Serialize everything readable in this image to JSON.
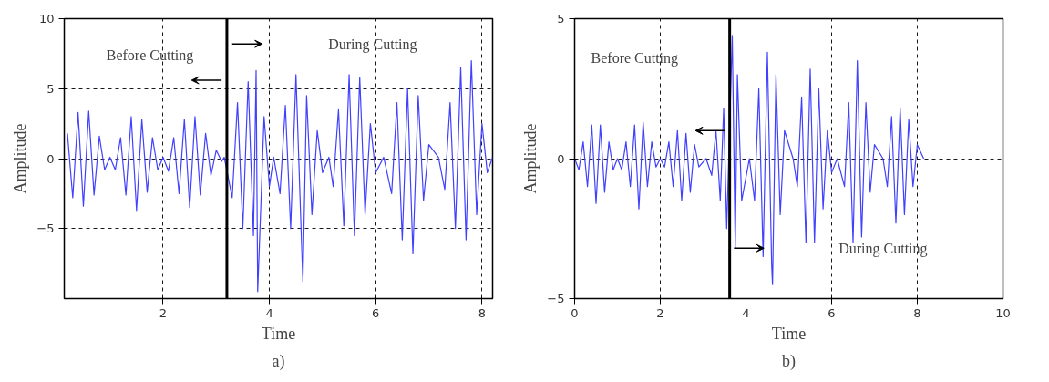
{
  "chart_data": [
    {
      "type": "line",
      "title": "a)",
      "xlabel": "Time",
      "ylabel": "Amplitude",
      "xlim": [
        0.14,
        8.2
      ],
      "ylim": [
        -10,
        10
      ],
      "xticks": [
        2,
        4,
        6,
        8
      ],
      "yticks": [
        -5,
        0,
        5,
        10
      ],
      "grid": true,
      "line_style": "solid",
      "ref_lines": [
        {
          "axis": "x",
          "value": 3.2,
          "color": "#000000"
        }
      ],
      "annotations": [
        "Before Cutting",
        "During Cutting"
      ],
      "series": [
        {
          "color": "#4040ff",
          "x": [
            0.2,
            0.3,
            0.4,
            0.5,
            0.6,
            0.7,
            0.8,
            0.9,
            1.0,
            1.1,
            1.2,
            1.3,
            1.4,
            1.5,
            1.6,
            1.7,
            1.8,
            1.9,
            2.0,
            2.1,
            2.2,
            2.3,
            2.4,
            2.5,
            2.6,
            2.7,
            2.8,
            2.9,
            3.0,
            3.1,
            3.15,
            3.3,
            3.4,
            3.5,
            3.6,
            3.7,
            3.75,
            3.78,
            3.9,
            4.0,
            4.08,
            4.2,
            4.3,
            4.4,
            4.5,
            4.6,
            4.63,
            4.7,
            4.8,
            4.9,
            5.0,
            5.12,
            5.2,
            5.3,
            5.4,
            5.5,
            5.6,
            5.7,
            5.8,
            5.9,
            6.0,
            6.15,
            6.3,
            6.4,
            6.5,
            6.6,
            6.7,
            6.8,
            6.9,
            7.0,
            7.18,
            7.3,
            7.4,
            7.5,
            7.6,
            7.7,
            7.8,
            7.9,
            8.0,
            8.1,
            8.2
          ],
          "values": [
            1.8,
            -2.8,
            3.3,
            -3.4,
            3.4,
            -2.6,
            1.6,
            -0.8,
            0.1,
            -0.8,
            1.5,
            -2.6,
            3.0,
            -3.7,
            2.8,
            -2.4,
            1.5,
            -0.8,
            0.1,
            -0.9,
            1.5,
            -2.5,
            2.8,
            -3.5,
            3.0,
            -2.6,
            1.8,
            -1.2,
            0.6,
            -0.2,
            0.1,
            -2.8,
            4.0,
            -5.0,
            5.5,
            -5.5,
            6.3,
            -9.5,
            3.0,
            -2.0,
            0.1,
            -2.5,
            3.8,
            -5.0,
            6.0,
            -5.5,
            -8.8,
            4.5,
            -4.0,
            2.0,
            -1.0,
            0.1,
            -2.0,
            3.5,
            -4.8,
            6.0,
            -5.5,
            5.8,
            -4.0,
            2.5,
            -1.0,
            0.1,
            -2.5,
            4.0,
            -5.8,
            5.0,
            -6.8,
            4.5,
            -3.0,
            1.0,
            0.1,
            -2.2,
            4.0,
            -5.0,
            6.5,
            -5.8,
            7.0,
            -4.0,
            2.5,
            -1.0,
            0.1
          ]
        }
      ]
    },
    {
      "type": "line",
      "title": "b)",
      "xlabel": "Time",
      "ylabel": "Amplitude",
      "xlim": [
        0,
        10
      ],
      "ylim": [
        -5,
        5
      ],
      "xticks": [
        0,
        2,
        4,
        6,
        8,
        10
      ],
      "yticks": [
        -5,
        0,
        5
      ],
      "grid": true,
      "line_style": "solid",
      "ref_lines": [
        {
          "axis": "x",
          "value": 3.62,
          "color": "#000000"
        }
      ],
      "annotations": [
        "Before Cutting",
        "During Cutting"
      ],
      "series": [
        {
          "color": "#4040ff",
          "x": [
            0,
            0.1,
            0.2,
            0.3,
            0.4,
            0.5,
            0.6,
            0.7,
            0.8,
            0.9,
            1.0,
            1.1,
            1.2,
            1.3,
            1.4,
            1.5,
            1.6,
            1.7,
            1.8,
            1.9,
            2.0,
            2.1,
            2.2,
            2.3,
            2.4,
            2.5,
            2.6,
            2.7,
            2.8,
            2.9,
            3.07,
            3.2,
            3.3,
            3.4,
            3.48,
            3.55,
            3.68,
            3.75,
            3.8,
            3.9,
            4.08,
            4.2,
            4.3,
            4.4,
            4.5,
            4.6,
            4.62,
            4.7,
            4.8,
            4.9,
            5.1,
            5.2,
            5.3,
            5.4,
            5.5,
            5.6,
            5.7,
            5.8,
            5.9,
            6.0,
            6.13,
            6.3,
            6.4,
            6.5,
            6.6,
            6.7,
            6.8,
            6.9,
            7.0,
            7.2,
            7.3,
            7.4,
            7.5,
            7.6,
            7.7,
            7.8,
            7.9,
            8.0,
            8.15
          ],
          "values": [
            0,
            -0.4,
            0.6,
            -1.0,
            1.2,
            -1.6,
            1.2,
            -1.2,
            0.6,
            -0.4,
            0,
            -0.4,
            0.6,
            -1.0,
            1.2,
            -1.8,
            1.3,
            -1.0,
            0.6,
            -0.3,
            0,
            -0.3,
            0.6,
            -1.0,
            1.0,
            -1.5,
            0.9,
            -1.2,
            0.5,
            -0.3,
            0,
            -0.6,
            1.0,
            -1.5,
            1.8,
            -2.5,
            4.4,
            -3.2,
            3.0,
            -1.5,
            0,
            -1.5,
            2.5,
            -3.5,
            3.8,
            -3.8,
            -4.5,
            3.0,
            -2.0,
            1.0,
            0,
            -1.0,
            2.2,
            -3.0,
            3.2,
            -3.0,
            2.5,
            -1.8,
            1.0,
            -0.5,
            0,
            -1.0,
            2.0,
            -3.0,
            3.5,
            -2.8,
            2.0,
            -1.2,
            0.5,
            0,
            -1.0,
            1.5,
            -2.3,
            1.8,
            -2.0,
            1.4,
            -1.0,
            0.5,
            0
          ]
        }
      ]
    }
  ]
}
